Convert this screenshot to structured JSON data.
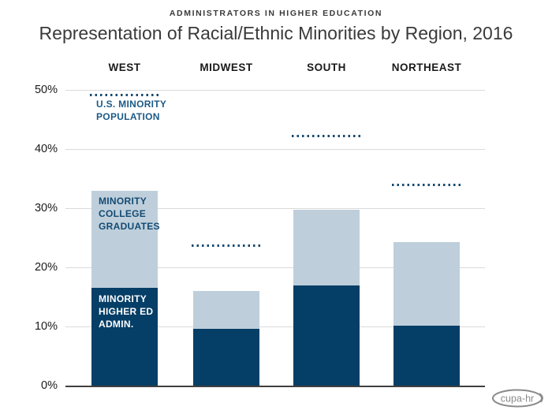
{
  "header": {
    "eyebrow": "ADMINISTRATORS IN HIGHER EDUCATION",
    "title": "Representation of Racial/Ethnic Minorities by Region, 2016"
  },
  "y_axis": {
    "ticks": [
      "50%",
      "40%",
      "30%",
      "20%",
      "10%",
      "0%"
    ]
  },
  "annotations": {
    "population": [
      "U.S. MINORITY",
      "POPULATION"
    ],
    "college": [
      "MINORITY",
      "COLLEGE",
      "GRADUATES"
    ],
    "admin": [
      "MINORITY",
      "HIGHER ED",
      "ADMIN."
    ]
  },
  "logo": {
    "text": "cupa-hr"
  },
  "colors": {
    "dark_navy": "#053e66",
    "light_blue": "#becfdb",
    "dotted_line": "#16496f",
    "population_label": "#1c5a88",
    "gridline": "#dadada",
    "axis": "#3f3f3f",
    "text": "#3a3a3a",
    "logo_grey": "#8a8a8a"
  },
  "chart_data": {
    "type": "bar",
    "title": "Representation of Racial/Ethnic Minorities by Region, 2016",
    "subtitle": "ADMINISTRATORS IN HIGHER EDUCATION",
    "categories": [
      "WEST",
      "MIDWEST",
      "SOUTH",
      "NORTHEAST"
    ],
    "series": [
      {
        "name": "MINORITY HIGHER ED ADMIN.",
        "role": "stacked-bar-bottom-segment",
        "values": [
          16.6,
          9.6,
          17.0,
          10.2
        ],
        "color": "#053e66"
      },
      {
        "name": "MINORITY COLLEGE GRADUATES",
        "role": "bar-total-height",
        "values": [
          33.0,
          16.0,
          29.8,
          24.3
        ],
        "color": "#becfdb"
      },
      {
        "name": "U.S. MINORITY POPULATION",
        "role": "dotted-reference-line",
        "values": [
          49.2,
          23.7,
          42.3,
          34.0
        ],
        "color": "#16496f"
      }
    ],
    "ylim": [
      0,
      50
    ],
    "y_tick_labels": [
      "0%",
      "10%",
      "20%",
      "30%",
      "40%",
      "50%"
    ],
    "grid": true,
    "legend_position": "in-chart labels on WEST bar"
  }
}
